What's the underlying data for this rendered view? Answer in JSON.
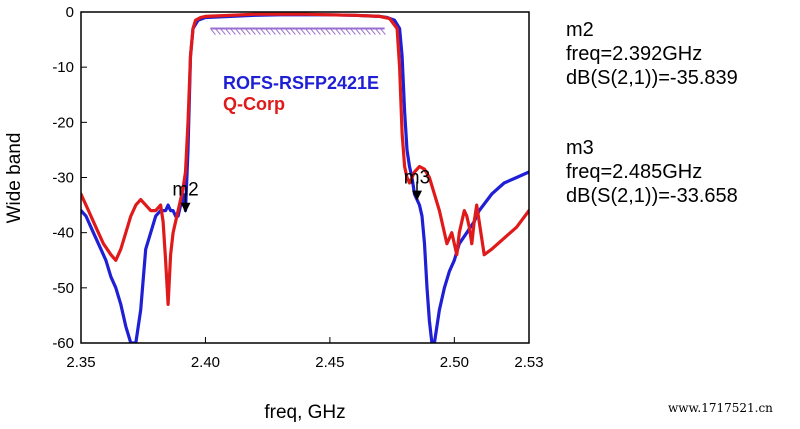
{
  "chart_data": {
    "type": "line",
    "title": "",
    "xlabel": "freq, GHz",
    "ylabel": "Wide band",
    "xlim": [
      2.35,
      2.53
    ],
    "ylim": [
      -60,
      0
    ],
    "x_ticks": [
      "2.35",
      "2.40",
      "2.45",
      "2.50",
      "2.53"
    ],
    "x_tick_values": [
      2.35,
      2.4,
      2.45,
      2.5,
      2.53
    ],
    "y_ticks": [
      "0",
      "-10",
      "-20",
      "-30",
      "-40",
      "-50",
      "-60"
    ],
    "y_tick_values": [
      0,
      -10,
      -20,
      -30,
      -40,
      -50,
      -60
    ],
    "grid": false,
    "legend_placement": "inside-center",
    "series": [
      {
        "name": "ROFS-RSFP2421E",
        "color": "#1f1fd6",
        "x": [
          2.35,
          2.352,
          2.355,
          2.358,
          2.36,
          2.362,
          2.364,
          2.366,
          2.368,
          2.37,
          2.372,
          2.374,
          2.376,
          2.378,
          2.38,
          2.382,
          2.384,
          2.385,
          2.386,
          2.387,
          2.388,
          2.389,
          2.39,
          2.391,
          2.392,
          2.393,
          2.394,
          2.395,
          2.397,
          2.4,
          2.41,
          2.42,
          2.43,
          2.44,
          2.45,
          2.46,
          2.47,
          2.473,
          2.476,
          2.478,
          2.479,
          2.48,
          2.481,
          2.482,
          2.483,
          2.484,
          2.485,
          2.486,
          2.487,
          2.488,
          2.489,
          2.49,
          2.491,
          2.492,
          2.494,
          2.496,
          2.498,
          2.5,
          2.502,
          2.505,
          2.508,
          2.51,
          2.515,
          2.52,
          2.525,
          2.53
        ],
        "y": [
          -36,
          -37,
          -40,
          -43,
          -45,
          -48,
          -50,
          -53,
          -57,
          -60,
          -60,
          -54,
          -43,
          -40,
          -37,
          -36,
          -36,
          -35,
          -36,
          -36,
          -37,
          -37,
          -35,
          -33,
          -36,
          -25,
          -8,
          -3,
          -1.5,
          -1,
          -0.8,
          -0.6,
          -0.5,
          -0.5,
          -0.5,
          -0.6,
          -0.8,
          -1,
          -1.5,
          -3,
          -8,
          -18,
          -25,
          -28,
          -30,
          -33,
          -34,
          -35,
          -37,
          -42,
          -50,
          -56,
          -60,
          -60,
          -54,
          -50,
          -47,
          -45,
          -42,
          -40,
          -38,
          -36,
          -33,
          -31,
          -30,
          -29
        ]
      },
      {
        "name": "Q-Corp",
        "color": "#e01a1a",
        "x": [
          2.35,
          2.353,
          2.356,
          2.359,
          2.362,
          2.364,
          2.366,
          2.368,
          2.37,
          2.372,
          2.374,
          2.376,
          2.378,
          2.38,
          2.382,
          2.383,
          2.384,
          2.385,
          2.386,
          2.387,
          2.388,
          2.389,
          2.39,
          2.391,
          2.392,
          2.393,
          2.394,
          2.395,
          2.396,
          2.398,
          2.4,
          2.41,
          2.42,
          2.43,
          2.44,
          2.45,
          2.46,
          2.47,
          2.474,
          2.477,
          2.478,
          2.479,
          2.48,
          2.481,
          2.482,
          2.483,
          2.484,
          2.486,
          2.488,
          2.49,
          2.492,
          2.494,
          2.495,
          2.496,
          2.497,
          2.498,
          2.499,
          2.5,
          2.501,
          2.502,
          2.503,
          2.504,
          2.505,
          2.506,
          2.507,
          2.508,
          2.509,
          2.51,
          2.512,
          2.515,
          2.52,
          2.525,
          2.53
        ],
        "y": [
          -33,
          -36,
          -39,
          -42,
          -44,
          -45,
          -43,
          -40,
          -37,
          -35,
          -34,
          -35,
          -36,
          -36,
          -35,
          -38,
          -45,
          -53,
          -44,
          -40,
          -38,
          -36,
          -34,
          -32,
          -29,
          -20,
          -8,
          -3,
          -1.5,
          -1,
          -0.8,
          -0.6,
          -0.4,
          -0.4,
          -0.4,
          -0.5,
          -0.6,
          -0.8,
          -1.2,
          -3,
          -10,
          -22,
          -28,
          -30,
          -31,
          -30,
          -29,
          -28,
          -28.5,
          -30,
          -33,
          -36,
          -38,
          -40,
          -42,
          -41,
          -40,
          -42,
          -44,
          -40,
          -38,
          -36,
          -37,
          -39,
          -42,
          -38,
          -35,
          -38,
          -44,
          -43,
          -41,
          -39,
          -36
        ]
      }
    ],
    "spec_mask": {
      "x_start": 2.402,
      "x_end": 2.472,
      "y": -3,
      "color": "#9b6fcf"
    },
    "markers": [
      {
        "label": "m2",
        "x": 2.392,
        "y": -35.839
      },
      {
        "label": "m3",
        "x": 2.485,
        "y": -33.658
      }
    ],
    "marker_readouts": [
      {
        "name": "m2",
        "freq_text": "freq=2.392GHz",
        "value_text": "dB(S(2,1))=-35.839"
      },
      {
        "name": "m3",
        "freq_text": "freq=2.485GHz",
        "value_text": "dB(S(2,1))=-33.658"
      }
    ]
  },
  "watermark": "www.1717521.cn"
}
